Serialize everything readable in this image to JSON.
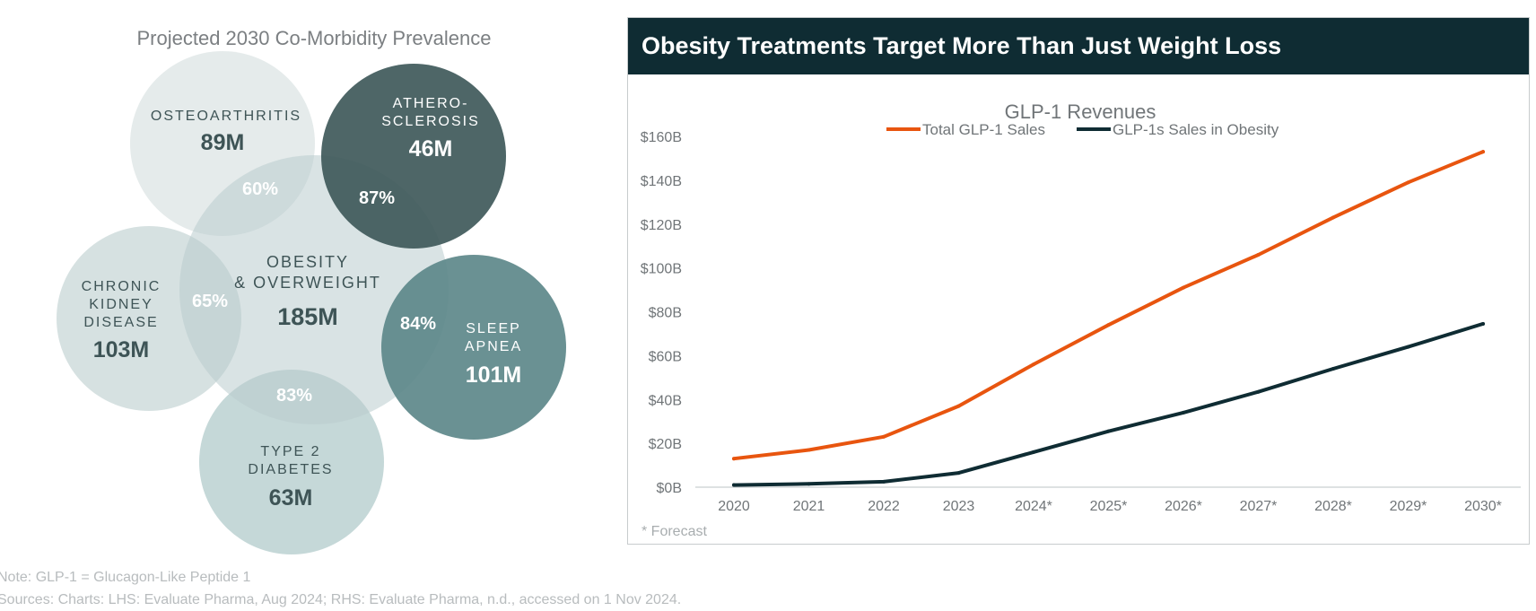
{
  "venn": {
    "title": "Projected 2030 Co-Morbidity Prevalence",
    "center": {
      "lines": [
        "OBESITY",
        "& OVERWEIGHT"
      ],
      "value": "185M"
    },
    "circles": [
      {
        "id": "osteoarthritis",
        "lines": [
          "OSTEOARTHRITIS"
        ],
        "value": "89M",
        "overlap": "60%",
        "color": "#e5ebeb"
      },
      {
        "id": "atherosclerosis",
        "lines": [
          "ATHERO-",
          "SCLEROSIS"
        ],
        "value": "46M",
        "overlap": "87%",
        "color": "#3b5557"
      },
      {
        "id": "ckd",
        "lines": [
          "CHRONIC",
          "KIDNEY",
          "DISEASE"
        ],
        "value": "103M",
        "overlap": "65%",
        "color": "#d4dfdf"
      },
      {
        "id": "sleep-apnea",
        "lines": [
          "SLEEP",
          "APNEA"
        ],
        "value": "101M",
        "overlap": "84%",
        "color": "#5a8587"
      },
      {
        "id": "type2-diabetes",
        "lines": [
          "TYPE 2",
          "DIABETES"
        ],
        "value": "63M",
        "overlap": "83%",
        "color": "#b8cfcf"
      }
    ]
  },
  "panel": {
    "header": "Obesity Treatments Target More Than Just Weight Loss",
    "forecast_note": "* Forecast"
  },
  "chart_data": {
    "type": "line",
    "title": "GLP-1 Revenues",
    "x": [
      "2020",
      "2021",
      "2022",
      "2023",
      "2024*",
      "2025*",
      "2026*",
      "2027*",
      "2028*",
      "2029*",
      "2030*"
    ],
    "series": [
      {
        "name": "Total GLP-1 Sales",
        "color": "#e8550f",
        "values": [
          13,
          17,
          23,
          37,
          56,
          74,
          91,
          106,
          123,
          139,
          153
        ]
      },
      {
        "name": "GLP-1s Sales in Obesity",
        "color": "#0f2c33",
        "values": [
          1,
          1.5,
          2.5,
          6.5,
          16,
          25.5,
          34,
          43.5,
          54,
          64,
          74.5
        ]
      }
    ],
    "yticks": [
      "$0B",
      "$20B",
      "$40B",
      "$60B",
      "$80B",
      "$100B",
      "$120B",
      "$140B",
      "$160B"
    ],
    "ylim": [
      0,
      160
    ],
    "grid": false,
    "legend": "top-center"
  },
  "footer": {
    "note": "Note: GLP-1 = Glucagon-Like Peptide 1",
    "sources": "Sources: Charts: LHS: Evaluate Pharma, Aug 2024; RHS: Evaluate Pharma, n.d., accessed on 1 Nov 2024."
  }
}
